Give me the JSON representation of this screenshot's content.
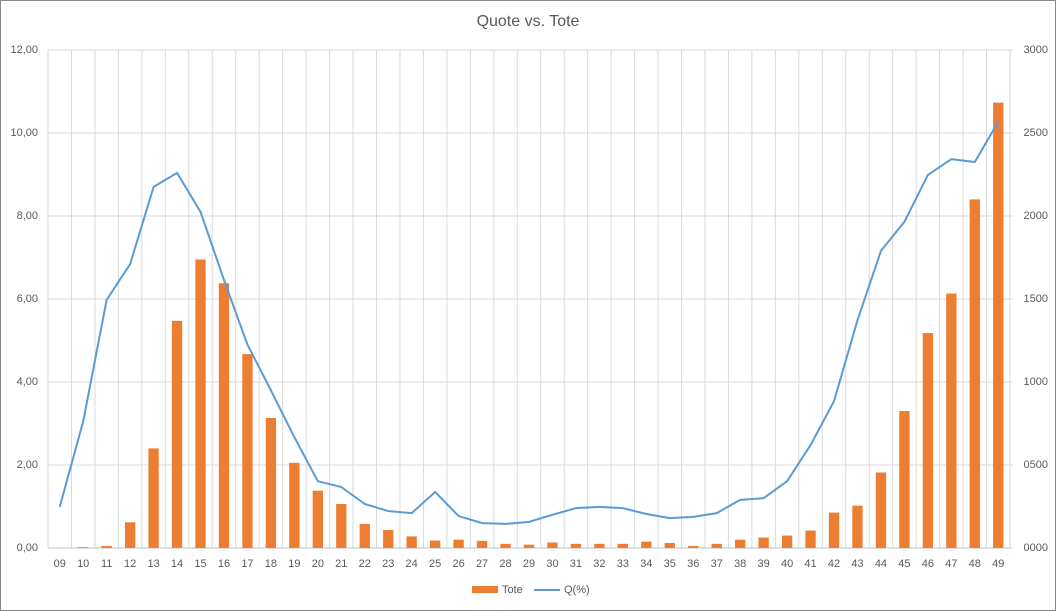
{
  "chart_data": {
    "type": "bar_line",
    "title": "Quote vs. Tote",
    "categories": [
      "09",
      "10",
      "11",
      "12",
      "13",
      "14",
      "15",
      "16",
      "17",
      "18",
      "19",
      "20",
      "21",
      "22",
      "23",
      "24",
      "25",
      "26",
      "27",
      "28",
      "29",
      "30",
      "31",
      "32",
      "33",
      "34",
      "35",
      "36",
      "37",
      "38",
      "39",
      "40",
      "41",
      "42",
      "43",
      "44",
      "45",
      "46",
      "47",
      "48",
      "49"
    ],
    "series": [
      {
        "name": "Tote",
        "type": "bar",
        "axis": "y2",
        "color": "#ed7d31",
        "values": [
          0,
          5,
          12,
          155,
          600,
          1368,
          1738,
          1595,
          1168,
          783,
          513,
          345,
          265,
          145,
          108,
          70,
          45,
          50,
          43,
          25,
          20,
          33,
          25,
          25,
          25,
          38,
          30,
          12,
          25,
          50,
          63,
          75,
          105,
          213,
          255,
          455,
          825,
          1295,
          1533,
          2100,
          2683
        ]
      },
      {
        "name": "Q(%)",
        "type": "line",
        "axis": "y",
        "color": "#5b9bd5",
        "values": [
          0.99,
          3.05,
          5.98,
          6.84,
          8.7,
          9.04,
          8.1,
          6.46,
          4.9,
          3.8,
          2.67,
          1.61,
          1.47,
          1.06,
          0.89,
          0.84,
          1.35,
          0.77,
          0.6,
          0.58,
          0.63,
          0.8,
          0.96,
          0.99,
          0.96,
          0.82,
          0.72,
          0.75,
          0.84,
          1.16,
          1.2,
          1.61,
          2.48,
          3.54,
          5.49,
          7.16,
          7.86,
          8.99,
          9.37,
          9.3,
          10.27
        ]
      }
    ],
    "ylim": [
      0,
      12
    ],
    "yticks": [
      {
        "value": 0,
        "label": "0,00"
      },
      {
        "value": 2,
        "label": "2,00"
      },
      {
        "value": 4,
        "label": "4,00"
      },
      {
        "value": 6,
        "label": "6,00"
      },
      {
        "value": 8,
        "label": "8,00"
      },
      {
        "value": 10,
        "label": "10,00"
      },
      {
        "value": 12,
        "label": "12,00"
      }
    ],
    "y2lim": [
      0,
      3000
    ],
    "y2ticks": [
      {
        "value": 0,
        "label": "0000"
      },
      {
        "value": 500,
        "label": "0500"
      },
      1000,
      1500,
      2000,
      2500,
      3000
    ],
    "grid": true,
    "legend": "bottom"
  }
}
